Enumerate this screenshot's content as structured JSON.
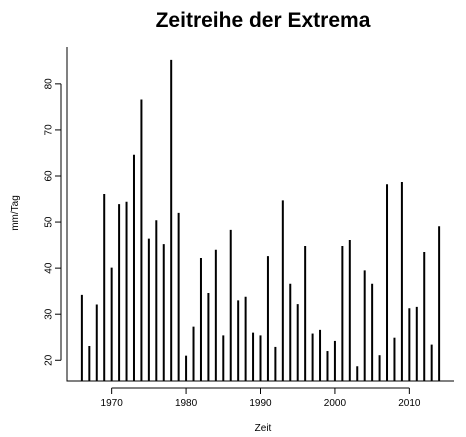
{
  "chart_data": {
    "type": "bar",
    "title": "Zeitreihe der Extrema",
    "xlabel": "Zeit",
    "ylabel": "mm/Tag",
    "xlim": [
      1964,
      2016
    ],
    "ylim": [
      15.5,
      88
    ],
    "x_ticks": [
      1970,
      1980,
      1990,
      2000,
      2010
    ],
    "y_ticks": [
      20,
      30,
      40,
      50,
      60,
      70,
      80
    ],
    "grid": false,
    "x": [
      1966,
      1967,
      1968,
      1969,
      1970,
      1971,
      1972,
      1973,
      1974,
      1975,
      1976,
      1977,
      1978,
      1979,
      1980,
      1981,
      1982,
      1983,
      1984,
      1985,
      1986,
      1987,
      1988,
      1989,
      1990,
      1991,
      1992,
      1993,
      1994,
      1995,
      1996,
      1997,
      1998,
      1999,
      2000,
      2001,
      2002,
      2003,
      2004,
      2005,
      2006,
      2007,
      2008,
      2009,
      2010,
      2011,
      2012,
      2013,
      2014
    ],
    "values": [
      34.2,
      23.1,
      32.1,
      56.1,
      40.1,
      53.9,
      54.4,
      64.6,
      76.6,
      46.4,
      50.4,
      45.2,
      85.2,
      52.0,
      21.0,
      27.3,
      42.2,
      34.6,
      44.0,
      25.4,
      48.3,
      33.0,
      33.8,
      26.0,
      25.4,
      42.6,
      22.9,
      54.7,
      36.6,
      32.2,
      44.8,
      25.8,
      26.6,
      22.0,
      24.2,
      44.8,
      46.1,
      18.7,
      39.5,
      36.6,
      21.1,
      58.2,
      24.9,
      58.7,
      31.3,
      31.6,
      43.5,
      23.4,
      49.1
    ]
  }
}
